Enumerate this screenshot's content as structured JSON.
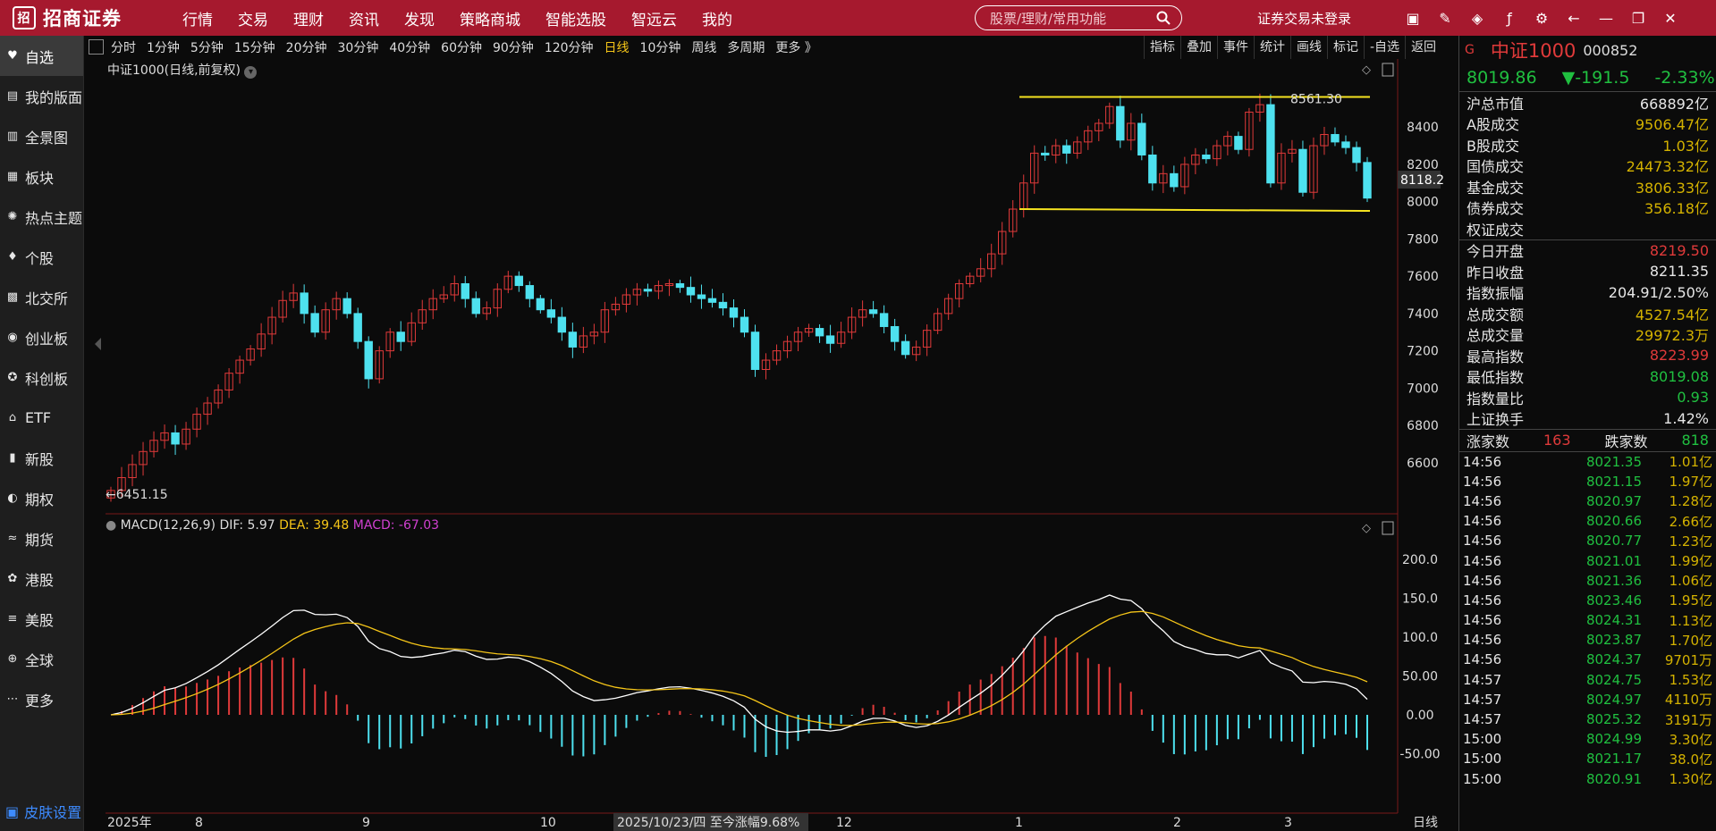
{
  "brand": {
    "name": "招商证券"
  },
  "nav": [
    "行情",
    "交易",
    "理财",
    "资讯",
    "发现",
    "策略商城",
    "智能选股",
    "智远云",
    "我的"
  ],
  "search": {
    "placeholder": "股票/理财/常用功能"
  },
  "login_status": "证券交易未登录",
  "sidebar": {
    "items": [
      {
        "label": "自选",
        "icon": "heart-icon"
      },
      {
        "label": "我的版面",
        "icon": "layout-icon"
      },
      {
        "label": "全景图",
        "icon": "bar-chart-icon"
      },
      {
        "label": "板块",
        "icon": "sector-icon"
      },
      {
        "label": "热点主题",
        "icon": "fire-icon"
      },
      {
        "label": "个股",
        "icon": "stock-icon"
      },
      {
        "label": "北交所",
        "icon": "bse-icon"
      },
      {
        "label": "创业板",
        "icon": "gem-icon"
      },
      {
        "label": "科创板",
        "icon": "star-icon"
      },
      {
        "label": "ETF",
        "icon": "etf-icon"
      },
      {
        "label": "新股",
        "icon": "ipo-icon"
      },
      {
        "label": "期权",
        "icon": "option-icon"
      },
      {
        "label": "期货",
        "icon": "futures-icon"
      },
      {
        "label": "港股",
        "icon": "hk-icon"
      },
      {
        "label": "美股",
        "icon": "us-icon"
      },
      {
        "label": "全球",
        "icon": "globe-icon"
      },
      {
        "label": "更多",
        "icon": "more-icon"
      }
    ],
    "skin": "皮肤设置"
  },
  "periods": [
    "分时",
    "1分钟",
    "5分钟",
    "15分钟",
    "20分钟",
    "30分钟",
    "40分钟",
    "60分钟",
    "90分钟",
    "120分钟",
    "日线",
    "10分钟",
    "周线",
    "多周期",
    "更多 》"
  ],
  "active_period": "日线",
  "right_tools": [
    "指标",
    "叠加",
    "事件",
    "统计",
    "画线",
    "标记",
    "-自选",
    "返回"
  ],
  "chart_title": "中证1000(日线,前复权)",
  "instrument": {
    "name": "中证1000",
    "code": "000852",
    "price": "8019.86",
    "change": "▼-191.5",
    "pct": "-2.33%"
  },
  "stats": [
    {
      "label": "沪总市值",
      "value": "668892亿",
      "color": "#e6e6e6"
    },
    {
      "label": "A股成交",
      "value": "9506.47亿",
      "color": "#d4b200"
    },
    {
      "label": "B股成交",
      "value": "1.03亿",
      "color": "#d4b200"
    },
    {
      "label": "国债成交",
      "value": "24473.32亿",
      "color": "#d4b200"
    },
    {
      "label": "基金成交",
      "value": "3806.33亿",
      "color": "#d4b200"
    },
    {
      "label": "债券成交",
      "value": "356.18亿",
      "color": "#d4b200"
    },
    {
      "label": "权证成交",
      "value": "",
      "color": "#d4b200"
    }
  ],
  "stats2": [
    {
      "label": "今日开盘",
      "value": "8219.50",
      "color": "#e03a3a"
    },
    {
      "label": "昨日收盘",
      "value": "8211.35",
      "color": "#e6e6e6"
    },
    {
      "label": "指数振幅",
      "value": "204.91/2.50%",
      "color": "#e6e6e6"
    },
    {
      "label": "总成交额",
      "value": "4527.54亿",
      "color": "#d4b200"
    },
    {
      "label": "总成交量",
      "value": "29972.3万",
      "color": "#d4b200"
    },
    {
      "label": "最高指数",
      "value": "8223.99",
      "color": "#e03a3a"
    },
    {
      "label": "最低指数",
      "value": "8019.08",
      "color": "#20c040"
    },
    {
      "label": "指数量比",
      "value": "0.93",
      "color": "#20c040"
    },
    {
      "label": "上证换手",
      "value": "1.42%",
      "color": "#e6e6e6"
    }
  ],
  "breadth": {
    "up_label": "涨家数",
    "up": "163",
    "down_label": "跌家数",
    "down": "818"
  },
  "ticks": [
    {
      "t": "14:56",
      "p": "8021.35",
      "v": "1.01亿"
    },
    {
      "t": "14:56",
      "p": "8021.15",
      "v": "1.97亿"
    },
    {
      "t": "14:56",
      "p": "8020.97",
      "v": "1.28亿"
    },
    {
      "t": "14:56",
      "p": "8020.66",
      "v": "2.66亿"
    },
    {
      "t": "14:56",
      "p": "8020.77",
      "v": "1.23亿"
    },
    {
      "t": "14:56",
      "p": "8021.01",
      "v": "1.99亿"
    },
    {
      "t": "14:56",
      "p": "8021.36",
      "v": "1.06亿"
    },
    {
      "t": "14:56",
      "p": "8023.46",
      "v": "1.95亿"
    },
    {
      "t": "14:56",
      "p": "8024.31",
      "v": "1.13亿"
    },
    {
      "t": "14:56",
      "p": "8023.87",
      "v": "1.70亿"
    },
    {
      "t": "14:56",
      "p": "8024.37",
      "v": "9701万"
    },
    {
      "t": "14:57",
      "p": "8024.75",
      "v": "1.53亿"
    },
    {
      "t": "14:57",
      "p": "8024.97",
      "v": "4110万"
    },
    {
      "t": "14:57",
      "p": "8025.32",
      "v": "3191万"
    },
    {
      "t": "15:00",
      "p": "8024.99",
      "v": "3.30亿"
    },
    {
      "t": "15:00",
      "p": "8021.17",
      "v": "38.0亿"
    },
    {
      "t": "15:00",
      "p": "8020.91",
      "v": "1.30亿"
    }
  ],
  "chart_data": {
    "type": "candlestick",
    "price_axis": [
      8400,
      8200,
      8000,
      7800,
      7600,
      7400,
      7200,
      7000,
      6800,
      6600
    ],
    "current_price_label": "8118.2",
    "high_label": "8561.30",
    "low_label": "6451.15",
    "channel": {
      "upper": 8561.3,
      "lower": 7960
    },
    "macd_axis": [
      "200.0",
      "150.0",
      "100.0",
      "50.00",
      "0.00",
      "-50.00"
    ],
    "macd_title": "MACD(12,26,9)",
    "dif": "DIF: 5.97",
    "dea": "DEA: 39.48",
    "macd": "MACD: -67.03",
    "x_labels": [
      "2025年",
      "8",
      "9",
      "10",
      "11",
      "12",
      "1",
      "2",
      "3"
    ],
    "cursor_label": "2025/10/23/四  至今涨幅9.68%",
    "period_tag": "日线",
    "closes": [
      6451,
      6520,
      6590,
      6660,
      6720,
      6760,
      6700,
      6780,
      6860,
      6920,
      6990,
      7080,
      7150,
      7210,
      7290,
      7380,
      7470,
      7510,
      7400,
      7300,
      7420,
      7480,
      7400,
      7250,
      7050,
      7200,
      7300,
      7250,
      7350,
      7420,
      7480,
      7500,
      7560,
      7480,
      7400,
      7430,
      7530,
      7600,
      7550,
      7480,
      7420,
      7380,
      7300,
      7220,
      7280,
      7300,
      7420,
      7450,
      7500,
      7530,
      7520,
      7550,
      7560,
      7540,
      7500,
      7480,
      7460,
      7430,
      7380,
      7300,
      7100,
      7150,
      7200,
      7250,
      7300,
      7320,
      7280,
      7240,
      7300,
      7380,
      7420,
      7400,
      7330,
      7250,
      7180,
      7220,
      7310,
      7400,
      7480,
      7560,
      7600,
      7640,
      7720,
      7840,
      7960,
      8100,
      8260,
      8250,
      8300,
      8260,
      8320,
      8380,
      8420,
      8510,
      8330,
      8420,
      8250,
      8100,
      8150,
      8080,
      8200,
      8250,
      8230,
      8300,
      8350,
      8280,
      8480,
      8520,
      8100,
      8260,
      8280,
      8050,
      8300,
      8360,
      8320,
      8290,
      8210,
      8019
    ]
  }
}
